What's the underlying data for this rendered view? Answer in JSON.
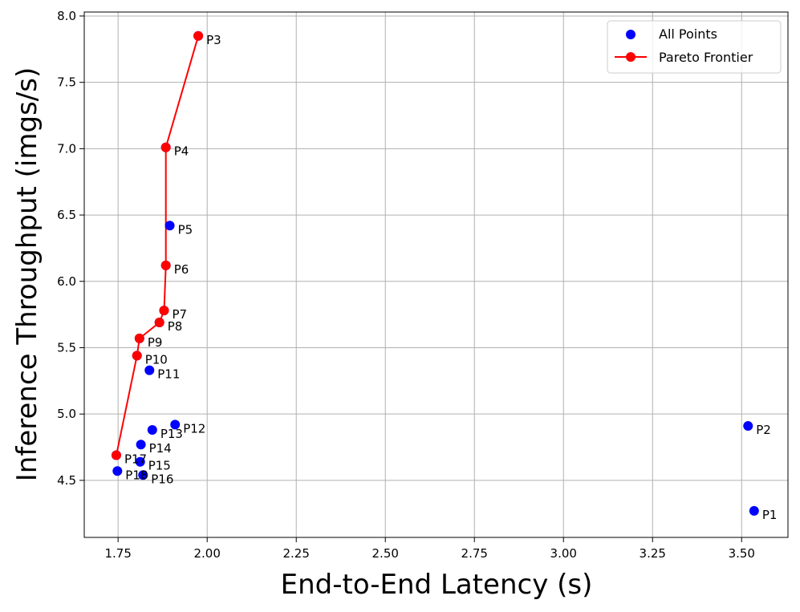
{
  "chart_data": {
    "type": "scatter",
    "title": "",
    "xlabel": "End-to-End Latency (s)",
    "ylabel": "Inference Throughput (imgs/s)",
    "xlim": [
      1.655,
      3.63
    ],
    "ylim": [
      4.07,
      8.03
    ],
    "xticks": [
      1.75,
      2.0,
      2.25,
      2.5,
      2.75,
      3.0,
      3.25,
      3.5
    ],
    "xtick_labels": [
      "1.75",
      "2.00",
      "2.25",
      "2.50",
      "2.75",
      "3.00",
      "3.25",
      "3.50"
    ],
    "yticks": [
      4.5,
      5.0,
      5.5,
      6.0,
      6.5,
      7.0,
      7.5,
      8.0
    ],
    "ytick_labels": [
      "4.5",
      "5.0",
      "5.5",
      "6.0",
      "6.5",
      "7.0",
      "7.5",
      "8.0"
    ],
    "grid": true,
    "legend_position": "top-right",
    "colors": {
      "all_points": "#0000ff",
      "pareto": "#ff0000",
      "grid": "#b0b0b0"
    },
    "series": [
      {
        "name": "All Points",
        "kind": "scatter",
        "points": [
          {
            "label": "P1",
            "x": 3.535,
            "y": 4.27
          },
          {
            "label": "P2",
            "x": 3.518,
            "y": 4.91
          },
          {
            "label": "P3",
            "x": 1.975,
            "y": 7.85
          },
          {
            "label": "P4",
            "x": 1.884,
            "y": 7.01
          },
          {
            "label": "P5",
            "x": 1.895,
            "y": 6.42
          },
          {
            "label": "P6",
            "x": 1.884,
            "y": 6.12
          },
          {
            "label": "P7",
            "x": 1.879,
            "y": 5.78
          },
          {
            "label": "P8",
            "x": 1.866,
            "y": 5.69
          },
          {
            "label": "P9",
            "x": 1.81,
            "y": 5.57
          },
          {
            "label": "P10",
            "x": 1.803,
            "y": 5.44
          },
          {
            "label": "P11",
            "x": 1.838,
            "y": 5.33
          },
          {
            "label": "P12",
            "x": 1.91,
            "y": 4.92
          },
          {
            "label": "P13",
            "x": 1.846,
            "y": 4.88
          },
          {
            "label": "P14",
            "x": 1.814,
            "y": 4.77
          },
          {
            "label": "P15",
            "x": 1.812,
            "y": 4.64
          },
          {
            "label": "P16",
            "x": 1.82,
            "y": 4.54
          },
          {
            "label": "P17",
            "x": 1.745,
            "y": 4.69
          },
          {
            "label": "P18",
            "x": 1.748,
            "y": 4.57
          }
        ]
      },
      {
        "name": "Pareto Frontier",
        "kind": "line",
        "points": [
          {
            "label": "P3",
            "x": 1.975,
            "y": 7.85
          },
          {
            "label": "P4",
            "x": 1.884,
            "y": 7.01
          },
          {
            "label": "P6",
            "x": 1.884,
            "y": 6.12
          },
          {
            "label": "P7",
            "x": 1.879,
            "y": 5.78
          },
          {
            "label": "P8",
            "x": 1.866,
            "y": 5.69
          },
          {
            "label": "P9",
            "x": 1.81,
            "y": 5.57
          },
          {
            "label": "P10",
            "x": 1.803,
            "y": 5.44
          },
          {
            "label": "P17",
            "x": 1.745,
            "y": 4.69
          }
        ]
      }
    ]
  }
}
